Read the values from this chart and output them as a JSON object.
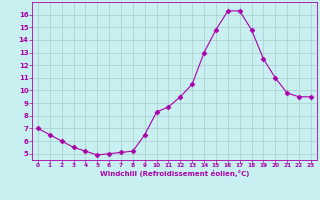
{
  "x": [
    0,
    1,
    2,
    3,
    4,
    5,
    6,
    7,
    8,
    9,
    10,
    11,
    12,
    13,
    14,
    15,
    16,
    17,
    18,
    19,
    20,
    21,
    22,
    23
  ],
  "y": [
    7.0,
    6.5,
    6.0,
    5.5,
    5.2,
    4.9,
    5.0,
    5.1,
    5.2,
    6.5,
    8.3,
    8.7,
    9.5,
    10.5,
    13.0,
    14.8,
    16.3,
    16.3,
    14.8,
    12.5,
    11.0,
    9.8,
    9.5,
    9.5
  ],
  "xlabel": "Windchill (Refroidissement éolien,°C)",
  "line_color": "#aa00aa",
  "marker": "D",
  "marker_size": 2.5,
  "bg_color": "#c8f0f0",
  "grid_color": "#aacccc",
  "tick_color": "#aa00aa",
  "label_color": "#aa00aa",
  "ylim": [
    4.5,
    17.0
  ],
  "xlim": [
    -0.5,
    23.5
  ],
  "yticks": [
    5,
    6,
    7,
    8,
    9,
    10,
    11,
    12,
    13,
    14,
    15,
    16
  ],
  "xticks": [
    0,
    1,
    2,
    3,
    4,
    5,
    6,
    7,
    8,
    9,
    10,
    11,
    12,
    13,
    14,
    15,
    16,
    17,
    18,
    19,
    20,
    21,
    22,
    23
  ]
}
